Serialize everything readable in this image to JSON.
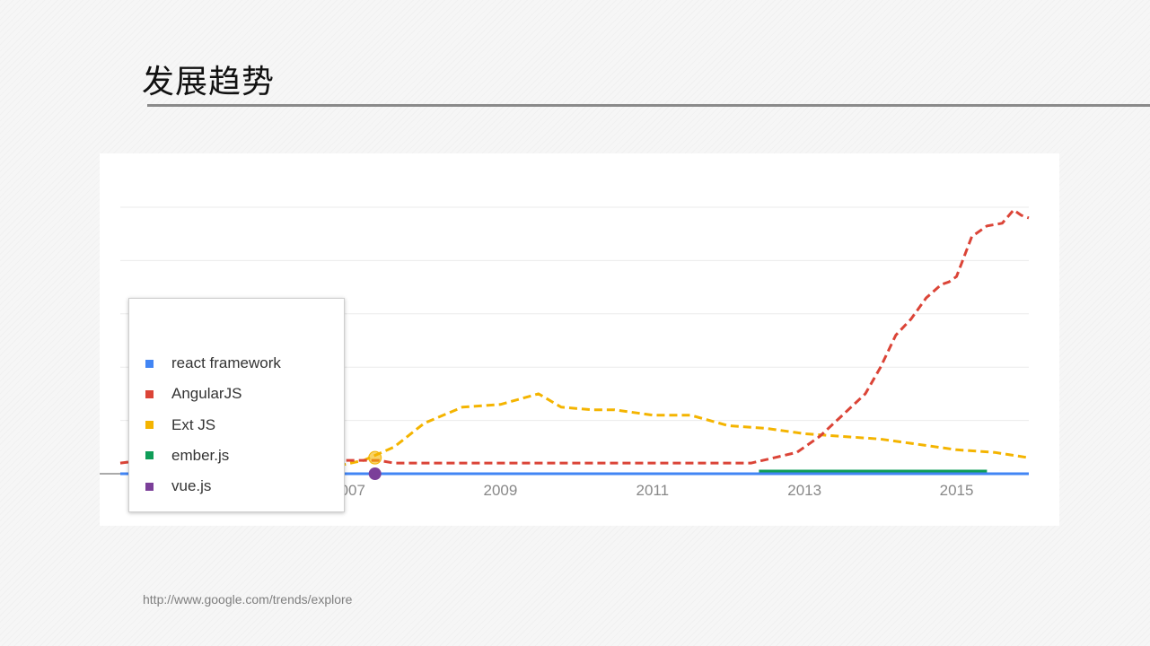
{
  "slide": {
    "title": "发展趋势",
    "source_url": "http://www.google.com/trends/explore"
  },
  "chart_data": {
    "type": "line",
    "title": "",
    "xlabel": "",
    "ylabel": "",
    "grid": true,
    "legend_position": "bottom-left overlay",
    "x_tick_labels": [
      "2007",
      "2009",
      "2011",
      "2013",
      "2015"
    ],
    "x_tick_years": [
      2007,
      2009,
      2011,
      2013,
      2015
    ],
    "xlim": [
      2004.0,
      2015.95
    ],
    "ylim": [
      0,
      100
    ],
    "series": [
      {
        "name": "react framework",
        "color": "#4285f4",
        "x": [
          2004.0,
          2015.95
        ],
        "y": [
          0,
          0
        ]
      },
      {
        "name": "AngularJS",
        "color": "#db4437",
        "x": [
          2004.0,
          2004.3,
          2005.0,
          2006.0,
          2007.0,
          2007.4,
          2007.6,
          2008.0,
          2008.5,
          2009.0,
          2009.5,
          2010.0,
          2010.5,
          2011.0,
          2011.5,
          2012.0,
          2012.3,
          2012.6,
          2012.9,
          2013.2,
          2013.5,
          2013.8,
          2014.0,
          2014.2,
          2014.4,
          2014.6,
          2014.8,
          2014.9,
          2015.0,
          2015.2,
          2015.4,
          2015.6,
          2015.75,
          2015.85,
          2015.95
        ],
        "y": [
          4,
          5,
          4,
          4,
          5,
          5,
          4,
          4,
          4,
          4,
          4,
          4,
          4,
          4,
          4,
          4,
          4,
          6,
          8,
          14,
          22,
          30,
          40,
          52,
          58,
          66,
          71,
          72,
          74,
          89,
          93,
          94,
          99,
          97,
          96
        ]
      },
      {
        "name": "Ext JS",
        "color": "#f4b400",
        "x": [
          2006.7,
          2007.2,
          2007.6,
          2008.0,
          2008.5,
          2009.0,
          2009.5,
          2009.8,
          2010.2,
          2010.5,
          2011.0,
          2011.5,
          2012.0,
          2012.5,
          2013.0,
          2013.5,
          2014.0,
          2014.5,
          2015.0,
          2015.5,
          2015.95
        ],
        "y": [
          2,
          5,
          10,
          19,
          25,
          26,
          30,
          25,
          24,
          24,
          22,
          22,
          18,
          17,
          15,
          14,
          13,
          11,
          9,
          8,
          6
        ]
      },
      {
        "name": "ember.js",
        "color": "#0f9d58",
        "x": [
          2012.4,
          2015.4
        ],
        "y": [
          1,
          1
        ]
      },
      {
        "name": "vue.js",
        "color": "#7b3f99",
        "x": [
          2004.0,
          2015.95
        ],
        "y": [
          0,
          0
        ]
      }
    ]
  }
}
